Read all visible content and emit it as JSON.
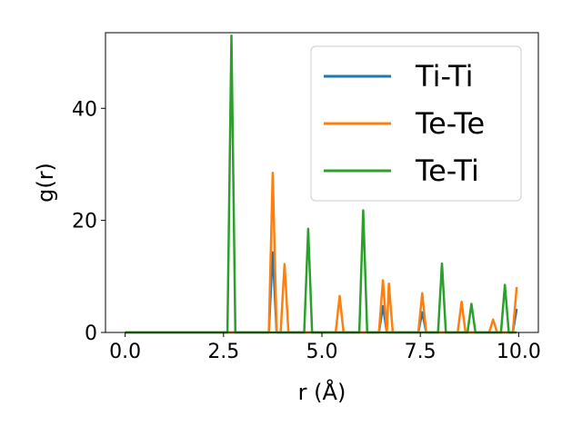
{
  "chart_data": {
    "type": "line",
    "title": "",
    "xlabel": "r (Å)",
    "ylabel": "g(r)",
    "xlim": [
      -0.5,
      10.5
    ],
    "ylim": [
      0,
      53.5
    ],
    "xticks": [
      {
        "value": 0.0,
        "label": "0.0"
      },
      {
        "value": 2.5,
        "label": "2.5"
      },
      {
        "value": 5.0,
        "label": "5.0"
      },
      {
        "value": 7.5,
        "label": "7.5"
      },
      {
        "value": 10.0,
        "label": "10.0"
      }
    ],
    "yticks": [
      {
        "value": 0,
        "label": "0"
      },
      {
        "value": 20,
        "label": "20"
      },
      {
        "value": 40,
        "label": "40"
      }
    ],
    "grid": false,
    "legend": "top-right",
    "series": [
      {
        "name": "Ti-Ti",
        "color": "#1f77b4",
        "points": [
          [
            0,
            0
          ],
          [
            3.65,
            0
          ],
          [
            3.75,
            14.3
          ],
          [
            3.85,
            0
          ],
          [
            6.45,
            0
          ],
          [
            6.55,
            4.7
          ],
          [
            6.65,
            0
          ],
          [
            7.45,
            0
          ],
          [
            7.55,
            3.6
          ],
          [
            7.65,
            0
          ],
          [
            9.85,
            0
          ],
          [
            9.95,
            4.2
          ]
        ]
      },
      {
        "name": "Te-Te",
        "color": "#ff7f0e",
        "points": [
          [
            0,
            0
          ],
          [
            3.65,
            0
          ],
          [
            3.75,
            28.5
          ],
          [
            3.85,
            0
          ],
          [
            3.95,
            0
          ],
          [
            4.05,
            12.2
          ],
          [
            4.15,
            0
          ],
          [
            5.35,
            0
          ],
          [
            5.45,
            6.5
          ],
          [
            5.55,
            0
          ],
          [
            6.45,
            0
          ],
          [
            6.55,
            9.3
          ],
          [
            6.65,
            0
          ],
          [
            6.7,
            8.7
          ],
          [
            6.8,
            0
          ],
          [
            7.45,
            0
          ],
          [
            7.55,
            7.0
          ],
          [
            7.65,
            0
          ],
          [
            8.45,
            0
          ],
          [
            8.55,
            5.5
          ],
          [
            8.65,
            0
          ],
          [
            9.25,
            0
          ],
          [
            9.35,
            2.3
          ],
          [
            9.45,
            0
          ],
          [
            9.85,
            0
          ],
          [
            9.95,
            8.1
          ]
        ]
      },
      {
        "name": "Te-Ti",
        "color": "#2ca02c",
        "points": [
          [
            0,
            0
          ],
          [
            2.6,
            0
          ],
          [
            2.7,
            53.0
          ],
          [
            2.8,
            0
          ],
          [
            4.55,
            0
          ],
          [
            4.65,
            18.5
          ],
          [
            4.75,
            0
          ],
          [
            5.95,
            0
          ],
          [
            6.05,
            21.8
          ],
          [
            6.15,
            0
          ],
          [
            7.95,
            0
          ],
          [
            8.05,
            12.3
          ],
          [
            8.15,
            0
          ],
          [
            8.7,
            0
          ],
          [
            8.8,
            5.1
          ],
          [
            8.9,
            0
          ],
          [
            9.55,
            0
          ],
          [
            9.65,
            8.5
          ],
          [
            9.75,
            0
          ],
          [
            9.95,
            0
          ]
        ]
      }
    ]
  }
}
